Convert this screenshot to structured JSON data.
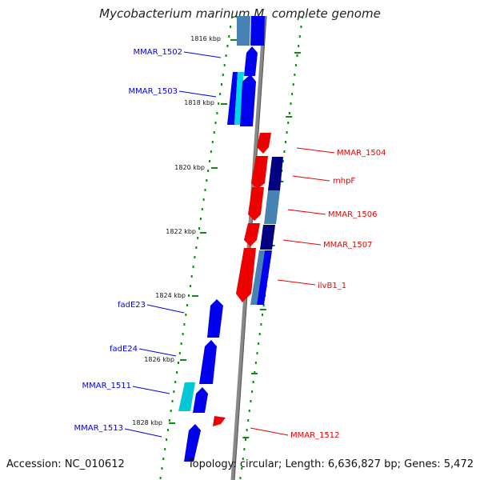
{
  "title": "Mycobacterium marinum M, complete genome",
  "accession": "Accession: NC_010612",
  "summary": "Topology: circular; Length: 6,636,827 bp; Genes: 5,472",
  "colors": {
    "forward_gene": "#0000ee",
    "reverse_gene": "#ee0000",
    "dark_blue": "#000080",
    "steel_blue": "#4682b4",
    "cyan": "#00c8d8",
    "backbone": "#888888",
    "tick": "#118811",
    "kbp_label": "#111111"
  },
  "kbp_labels": [
    "1816 kbp",
    "1818 kbp",
    "1820 kbp",
    "1822 kbp",
    "1824 kbp",
    "1826 kbp",
    "1828 kbp"
  ],
  "left_labels": [
    "MMAR_1502",
    "MMAR_1503",
    "fadE23",
    "fadE24",
    "MMAR_1511",
    "MMAR_1513"
  ],
  "right_labels": [
    "MMAR_1504",
    "mhpF",
    "MMAR_1506",
    "MMAR_1507",
    "ilvB1_1",
    "MMAR_1512"
  ]
}
